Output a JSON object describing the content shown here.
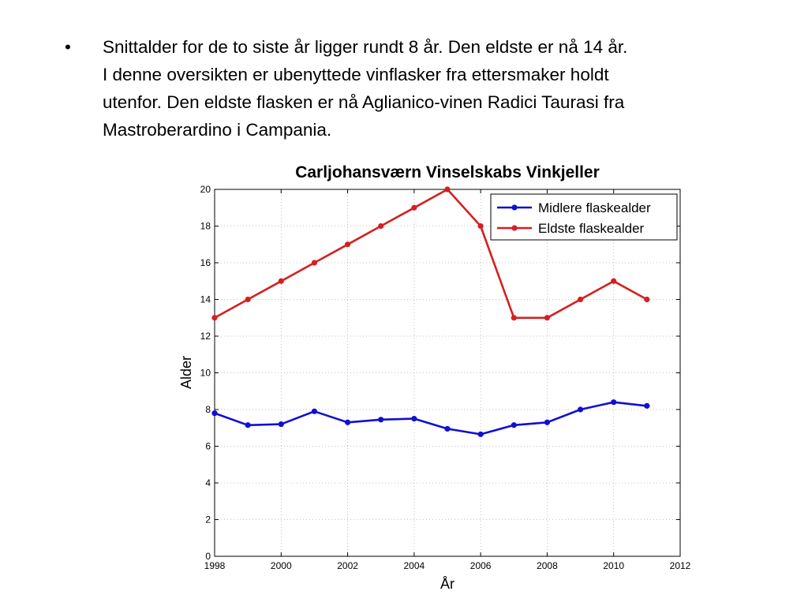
{
  "slide": {
    "bullet_symbol": "•",
    "bullet_lines": [
      "Snittalder for de to siste år ligger rundt 8 år. Den eldste er nå 14 år.",
      "I denne oversikten er ubenyttede vinflasker fra ettersmaker holdt",
      "utenfor.  Den eldste flasken er nå Aglianico-vinen Radici Taurasi fra",
      "Mastroberardino i Campania."
    ]
  },
  "chart_data": {
    "type": "line",
    "title": "Carljohansværn Vinselskabs Vinkjeller",
    "xlabel": "År",
    "ylabel": "Alder",
    "xlim": [
      1998,
      2012
    ],
    "ylim": [
      0,
      20
    ],
    "xticks": [
      1998,
      2000,
      2002,
      2004,
      2006,
      2008,
      2010,
      2012
    ],
    "yticks": [
      0,
      2,
      4,
      6,
      8,
      10,
      12,
      14,
      16,
      18,
      20
    ],
    "grid": "dotted",
    "legend_position": "top-right",
    "series": [
      {
        "name": "Midlere flaskealder",
        "color": "#1010d0",
        "x": [
          1998,
          1999,
          2000,
          2001,
          2002,
          2003,
          2004,
          2005,
          2006,
          2007,
          2008,
          2009,
          2010,
          2011
        ],
        "y": [
          7.8,
          7.15,
          7.2,
          7.9,
          7.3,
          7.45,
          7.5,
          6.95,
          6.65,
          7.15,
          7.3,
          8.0,
          8.4,
          8.2
        ]
      },
      {
        "name": "Eldste flaskealder",
        "color": "#d42020",
        "x": [
          1998,
          1999,
          2000,
          2001,
          2002,
          2003,
          2004,
          2005,
          2006,
          2007,
          2008,
          2009,
          2010,
          2011
        ],
        "y": [
          13,
          14,
          15,
          16,
          17,
          18,
          19,
          20,
          18,
          13,
          13,
          14,
          15,
          14
        ]
      }
    ]
  }
}
